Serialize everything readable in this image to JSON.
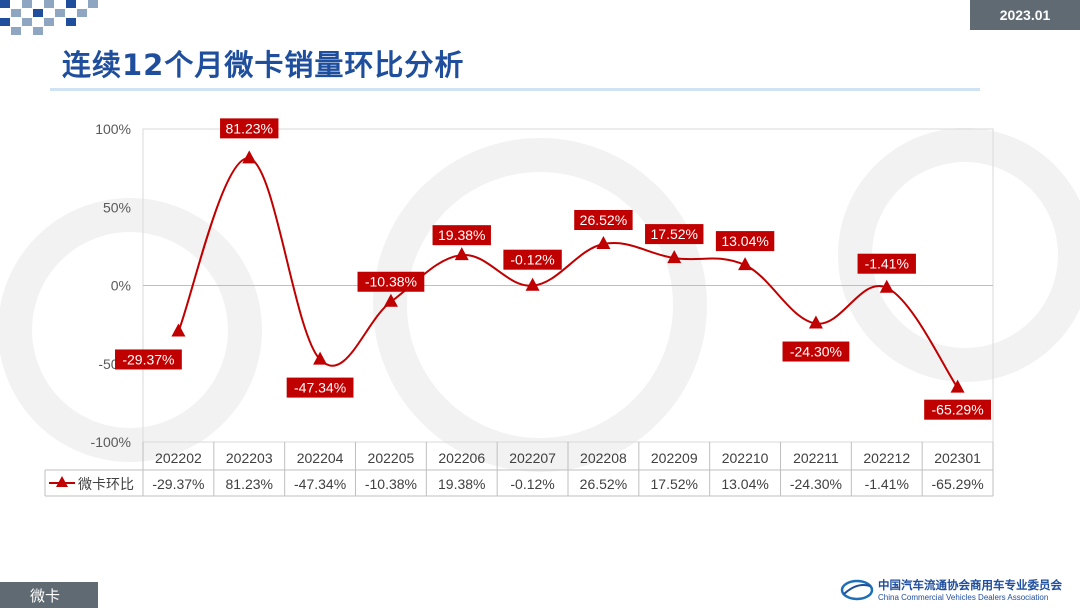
{
  "header": {
    "date": "2023.01",
    "title": "连续12个月微卡销量环比分析"
  },
  "footer": {
    "tag": "微卡",
    "org_cn": "中国汽车流通协会商用车专业委员会",
    "org_en": "China Commercial Vehicles Dealers Association"
  },
  "colors": {
    "series": "#c00000",
    "title": "#1f4e9d",
    "badge": "#5f6a72"
  },
  "chart_data": {
    "type": "line",
    "smooth": true,
    "categories": [
      "202202",
      "202203",
      "202204",
      "202205",
      "202206",
      "202207",
      "202208",
      "202209",
      "202210",
      "202211",
      "202212",
      "202301"
    ],
    "series": [
      {
        "name": "微卡环比",
        "marker": "triangle",
        "values": [
          -29.37,
          81.23,
          -47.34,
          -10.38,
          19.38,
          -0.12,
          26.52,
          17.52,
          13.04,
          -24.3,
          -1.41,
          -65.29
        ],
        "labels": [
          "-29.37%",
          "81.23%",
          "-47.34%",
          "-10.38%",
          "19.38%",
          "-0.12%",
          "26.52%",
          "17.52%",
          "13.04%",
          "-24.30%",
          "-1.41%",
          "-65.29%"
        ]
      }
    ],
    "ylim": [
      -100,
      100
    ],
    "yticks": [
      "100%",
      "50%",
      "0%",
      "-50%",
      "-100%"
    ],
    "ytick_values": [
      100,
      50,
      0,
      -50,
      -100
    ],
    "data_table": true,
    "grid": false
  }
}
